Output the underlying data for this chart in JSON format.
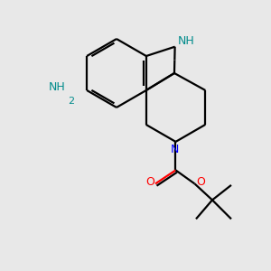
{
  "background_color": "#e8e8e8",
  "bond_color": "#000000",
  "N_color": "#0000ff",
  "NH_color": "#008b8b",
  "O_color": "#ff0000",
  "line_width": 1.6,
  "figsize": [
    3.0,
    3.0
  ],
  "dpi": 100,
  "xlim": [
    0,
    10
  ],
  "ylim": [
    0,
    10
  ],
  "font_size": 8.5
}
